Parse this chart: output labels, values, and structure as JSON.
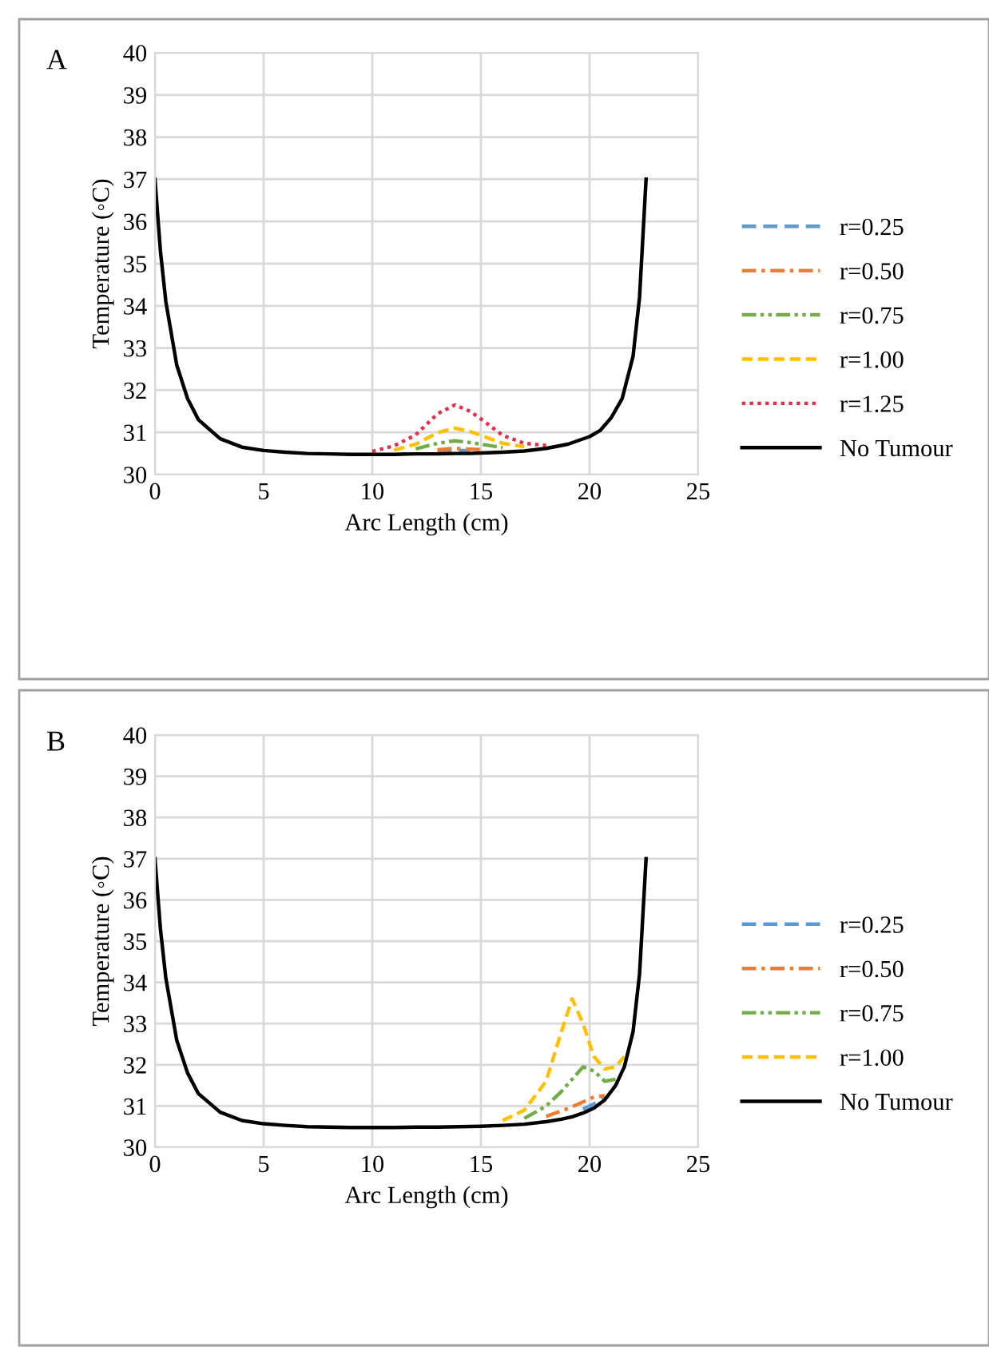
{
  "chart_data": [
    {
      "type": "line",
      "title": "A",
      "xlabel": "Arc Length (cm)",
      "ylabel": "Temperature (◦C)",
      "xlim": [
        0,
        25
      ],
      "xticks": [
        0,
        5,
        10,
        15,
        20,
        25
      ],
      "ylim": [
        30,
        40
      ],
      "yticks": [
        30,
        31,
        32,
        33,
        34,
        35,
        36,
        37,
        38,
        39,
        40
      ],
      "grid": true,
      "legend": "right",
      "marker": "none",
      "x": [
        0,
        0.25,
        0.5,
        1,
        1.5,
        2,
        3,
        4,
        5,
        6,
        7,
        8,
        9,
        10,
        11,
        12,
        13,
        13.8,
        14.5,
        15,
        16,
        17,
        18,
        19,
        20,
        20.5,
        21,
        21.5,
        22,
        22.3,
        22.6
      ],
      "series": [
        {
          "name": "r=0.25",
          "color": "#5b9bd5",
          "line_style": "longdash",
          "x": [
            13,
            13.8,
            14.5
          ],
          "values": [
            30.56,
            30.58,
            30.56
          ]
        },
        {
          "name": "r=0.50",
          "color": "#ed7d31",
          "line_style": "dashdot",
          "x": [
            13,
            13.8,
            14.5,
            15
          ],
          "values": [
            30.59,
            30.62,
            30.6,
            30.59
          ]
        },
        {
          "name": "r=0.75",
          "color": "#70ad47",
          "line_style": "dashdotdot",
          "x": [
            12,
            13,
            13.8,
            14.5,
            15,
            16
          ],
          "values": [
            30.61,
            30.74,
            30.8,
            30.76,
            30.72,
            30.64
          ]
        },
        {
          "name": "r=1.00",
          "color": "#ffc000",
          "line_style": "dashed",
          "x": [
            11,
            12,
            13,
            13.8,
            14.5,
            15,
            16,
            17
          ],
          "values": [
            30.58,
            30.72,
            30.99,
            31.1,
            31.02,
            30.93,
            30.74,
            30.66
          ]
        },
        {
          "name": "r=1.25",
          "color": "#e0304e",
          "line_style": "dotted",
          "x": [
            10,
            11,
            12,
            13,
            13.8,
            14.5,
            15,
            16,
            17,
            18
          ],
          "values": [
            30.55,
            30.68,
            30.94,
            31.44,
            31.65,
            31.5,
            31.32,
            30.93,
            30.74,
            30.69
          ]
        },
        {
          "name": "No Tumour",
          "color": "#000000",
          "line_style": "solid",
          "values": [
            37,
            35.3,
            34.1,
            32.6,
            31.8,
            31.3,
            30.85,
            30.65,
            30.57,
            30.53,
            30.5,
            30.49,
            30.48,
            30.48,
            30.48,
            30.49,
            30.49,
            30.5,
            30.5,
            30.51,
            30.53,
            30.56,
            30.62,
            30.72,
            30.9,
            31.05,
            31.35,
            31.8,
            32.8,
            34.2,
            37
          ]
        }
      ]
    },
    {
      "type": "line",
      "title": "B",
      "xlabel": "Arc Length (cm)",
      "ylabel": "Temperature (◦C)",
      "xlim": [
        0,
        25
      ],
      "xticks": [
        0,
        5,
        10,
        15,
        20,
        25
      ],
      "ylim": [
        30,
        40
      ],
      "yticks": [
        30,
        31,
        32,
        33,
        34,
        35,
        36,
        37,
        38,
        39,
        40
      ],
      "grid": true,
      "legend": "right",
      "marker": "none",
      "x": [
        0,
        0.25,
        0.5,
        1,
        1.5,
        2,
        3,
        4,
        5,
        6,
        7,
        8,
        9,
        10,
        11,
        12,
        13,
        14,
        15,
        16,
        17,
        18,
        18.7,
        19.2,
        19.7,
        20.2,
        20.7,
        21.2,
        21.6,
        22,
        22.3,
        22.6
      ],
      "series": [
        {
          "name": "r=0.25",
          "color": "#5b9bd5",
          "line_style": "longdash",
          "x": [
            19.7,
            20.2,
            20.7
          ],
          "values": [
            30.92,
            31.05,
            31.25
          ]
        },
        {
          "name": "r=0.50",
          "color": "#ed7d31",
          "line_style": "dashdot",
          "x": [
            18,
            18.7,
            19.2,
            19.7,
            20.2,
            20.7
          ],
          "values": [
            30.75,
            30.88,
            30.98,
            31.1,
            31.22,
            31.25
          ]
        },
        {
          "name": "r=0.75",
          "color": "#70ad47",
          "line_style": "dashdotdot",
          "x": [
            17,
            18,
            18.7,
            19.2,
            19.7,
            20.2,
            20.7,
            21.2
          ],
          "values": [
            30.7,
            31.0,
            31.35,
            31.65,
            31.95,
            31.85,
            31.6,
            31.65
          ]
        },
        {
          "name": "r=1.00",
          "color": "#ffc000",
          "line_style": "dashed",
          "x": [
            16,
            17,
            18,
            18.7,
            19.2,
            19.7,
            20.2,
            20.7,
            21.2,
            21.6
          ],
          "values": [
            30.65,
            30.9,
            31.6,
            32.8,
            33.6,
            33.0,
            32.2,
            31.9,
            31.95,
            32.2
          ]
        },
        {
          "name": "No Tumour",
          "color": "#000000",
          "line_style": "solid",
          "values": [
            37,
            35.3,
            34.1,
            32.6,
            31.8,
            31.3,
            30.85,
            30.65,
            30.57,
            30.53,
            30.5,
            30.49,
            30.48,
            30.48,
            30.48,
            30.49,
            30.49,
            30.5,
            30.51,
            30.53,
            30.56,
            30.62,
            30.68,
            30.74,
            30.83,
            30.95,
            31.15,
            31.5,
            31.95,
            32.8,
            34.2,
            37
          ]
        }
      ]
    }
  ]
}
